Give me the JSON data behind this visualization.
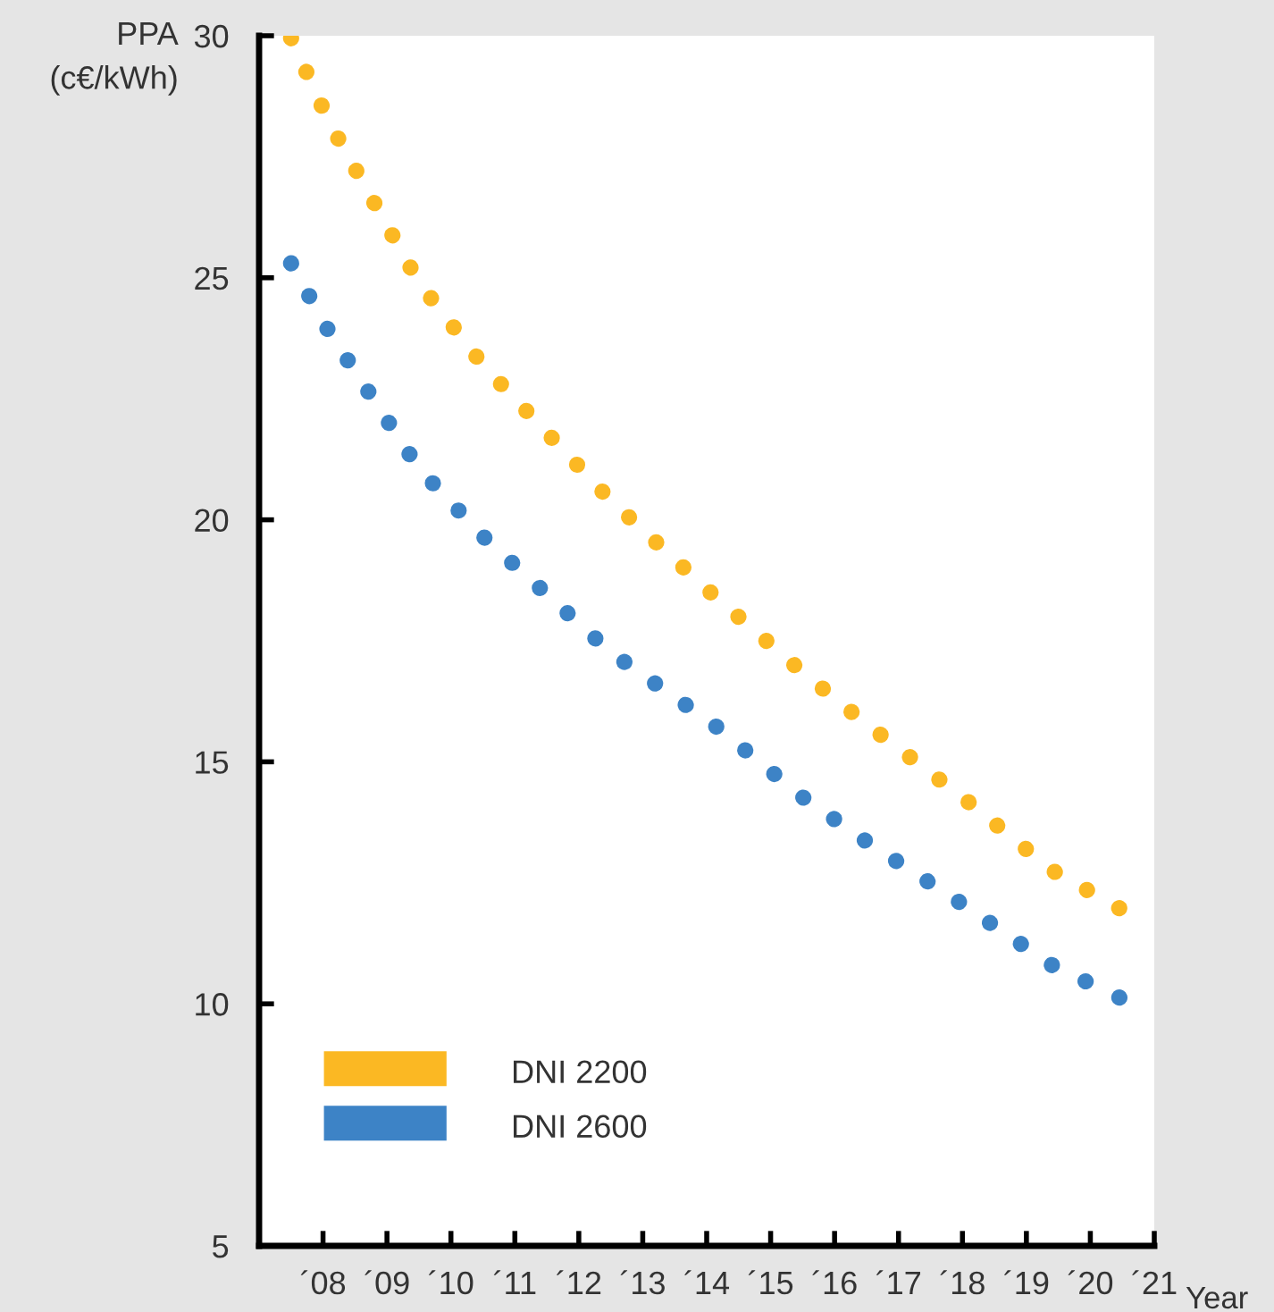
{
  "chart_data": {
    "type": "line",
    "ylabel": "PPA\n(c€/kWh)",
    "xlabel": "Year",
    "x": [
      7.5,
      8.1,
      9.5,
      10.5,
      12.5,
      14.1,
      15.5,
      16.5,
      18.0,
      19.4,
      20.5
    ],
    "series": [
      {
        "name": "DNI 2200",
        "color": "#fbb823",
        "values": [
          29.95,
          28.2,
          24.9,
          23.2,
          20.4,
          18.45,
          16.85,
          15.78,
          14.27,
          12.76,
          11.94
        ]
      },
      {
        "name": "DNI 2600",
        "color": "#3d83c6",
        "values": [
          25.3,
          23.87,
          21.06,
          19.66,
          17.26,
          15.78,
          14.27,
          13.35,
          12.06,
          10.8,
          10.1
        ]
      }
    ],
    "xlim": [
      7,
      21
    ],
    "xticks": [
      {
        "value": 8,
        "label": "´08"
      },
      {
        "value": 9,
        "label": "´09"
      },
      {
        "value": 10,
        "label": "´10"
      },
      {
        "value": 11,
        "label": "´11"
      },
      {
        "value": 12,
        "label": "´12"
      },
      {
        "value": 13,
        "label": "´13"
      },
      {
        "value": 14,
        "label": "´14"
      },
      {
        "value": 15,
        "label": "´15"
      },
      {
        "value": 16,
        "label": "´16"
      },
      {
        "value": 17,
        "label": "´17"
      },
      {
        "value": 18,
        "label": "´18"
      },
      {
        "value": 19,
        "label": "´19"
      },
      {
        "value": 20,
        "label": "´20"
      },
      {
        "value": 21,
        "label": "´21"
      }
    ],
    "ylim": [
      5,
      30
    ],
    "yticks": [
      5,
      10,
      15,
      20,
      25,
      30
    ],
    "grid": false,
    "legend": "bottom left",
    "line_style": "dotted",
    "marker": "none"
  }
}
